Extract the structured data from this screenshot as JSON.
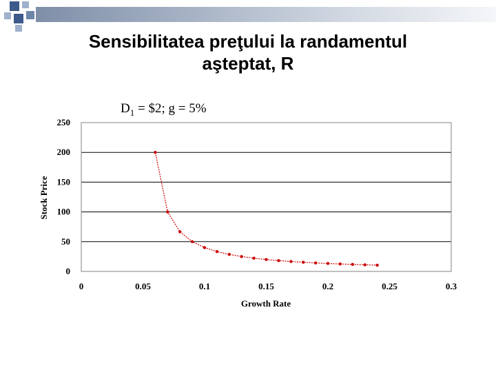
{
  "slide": {
    "title_line1": "Sensibilitatea preţului la randamentul",
    "title_line2": "aşteptat, R",
    "subtitle_prefix": "D",
    "subtitle_sub": "1",
    "subtitle_suffix": " = $2; g = 5%"
  },
  "colors": {
    "series": "#cc0000",
    "accent_dark": "#3c5a8c",
    "accent_light": "#9fb1cc"
  },
  "chart_data": {
    "type": "line",
    "xlabel": "Growth Rate",
    "ylabel": "Stock Price",
    "xlim": [
      0,
      0.3
    ],
    "ylim": [
      0,
      250
    ],
    "x_ticks": [
      "0",
      "0.05",
      "0.1",
      "0.15",
      "0.2",
      "0.25",
      "0.3"
    ],
    "y_ticks": [
      "250",
      "200",
      "150",
      "100",
      "50",
      "0"
    ],
    "grid": "horizontal",
    "series": [
      {
        "x": [
          0.06,
          0.07,
          0.08,
          0.09,
          0.1,
          0.11,
          0.12,
          0.13,
          0.14,
          0.15,
          0.16,
          0.17,
          0.18,
          0.19,
          0.2,
          0.21,
          0.22,
          0.23,
          0.24
        ],
        "values": [
          200,
          100,
          66.67,
          50,
          40,
          33.33,
          28.57,
          25,
          22.22,
          20,
          18.18,
          16.67,
          15.38,
          14.29,
          13.33,
          12.5,
          11.76,
          11.11,
          10.53
        ]
      }
    ]
  }
}
